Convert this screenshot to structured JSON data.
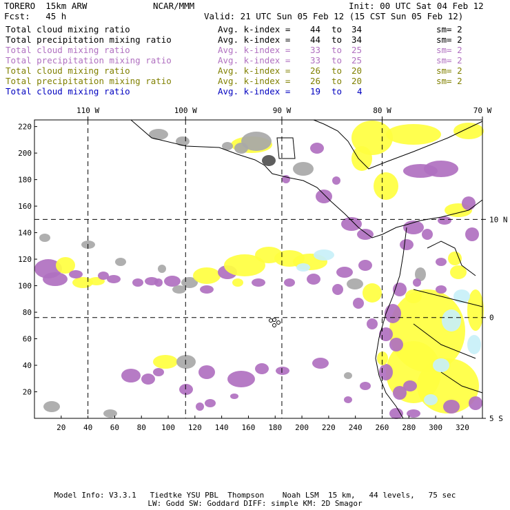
{
  "header": {
    "model": "TORERO  15km ARW",
    "center": "NCAR/MMM",
    "init": "Init: 00 UTC Sat 04 Feb 12",
    "fcst": "Fcst:   45 h",
    "valid": "Valid: 21 UTC Sun 05 Feb 12 (15 CST Sun 05 Feb 12)"
  },
  "legend": [
    {
      "field": "Total cloud mixing ratio",
      "index_label": "Avg. k-index =",
      "from": "44",
      "to_word": "to",
      "to": "34",
      "sm": "sm= 2",
      "color": "#000000"
    },
    {
      "field": "Total precipitation mixing ratio",
      "index_label": "Avg. k-index =",
      "from": "44",
      "to_word": "to",
      "to": "34",
      "sm": "sm= 2",
      "color": "#000000"
    },
    {
      "field": "Total cloud mixing ratio",
      "index_label": "Avg. k-index =",
      "from": "33",
      "to_word": "to",
      "to": "25",
      "sm": "sm= 2",
      "color": "#b070c0"
    },
    {
      "field": "Total precipitation mixing ratio",
      "index_label": "Avg. k-index =",
      "from": "33",
      "to_word": "to",
      "to": "25",
      "sm": "sm= 2",
      "color": "#b070c0"
    },
    {
      "field": "Total cloud mixing ratio",
      "index_label": "Avg. k-index =",
      "from": "26",
      "to_word": "to",
      "to": "20",
      "sm": "sm= 2",
      "color": "#808000"
    },
    {
      "field": "Total precipitation mixing ratio",
      "index_label": "Avg. k-index =",
      "from": "26",
      "to_word": "to",
      "to": "20",
      "sm": "sm= 2",
      "color": "#808000"
    },
    {
      "field": "Total cloud mixing ratio",
      "index_label": "Avg. k-index =",
      "from": "19",
      "to_word": "to",
      "to": "4",
      "sm": "",
      "color": "#0000c0"
    }
  ],
  "map": {
    "lon_labels": [
      "110 W",
      "100 W",
      "90 W",
      "80 W",
      "70 W"
    ],
    "lat_labels": [
      "10 N",
      "0",
      "5 S"
    ],
    "grid_x_range": [
      0,
      335
    ],
    "grid_y_range": [
      0,
      225
    ],
    "x_ticks": [
      20,
      40,
      60,
      80,
      100,
      120,
      140,
      160,
      180,
      200,
      220,
      240,
      260,
      280,
      300,
      320
    ],
    "y_ticks": [
      20,
      40,
      60,
      80,
      100,
      120,
      140,
      160,
      180,
      200,
      220
    ],
    "meridians_grid_x": [
      40,
      113,
      185,
      260
    ],
    "parallels_grid_y": [
      150,
      76
    ],
    "colors": {
      "gray": "#a8a8a8",
      "dark_gray": "#505050",
      "purple": "#b070c0",
      "yellow": "#ffff40",
      "pale_yellow": "#ffffa0",
      "cyan": "#c8f0f8",
      "coast": "#000000"
    }
  },
  "footer": {
    "line1": "Model Info: V3.3.1   Tiedtke YSU PBL  Thompson    Noah LSM  15 km,   44 levels,   75 sec",
    "line2": "LW: Godd SW: Goddard DIFF: simple KM: 2D Smagor"
  }
}
